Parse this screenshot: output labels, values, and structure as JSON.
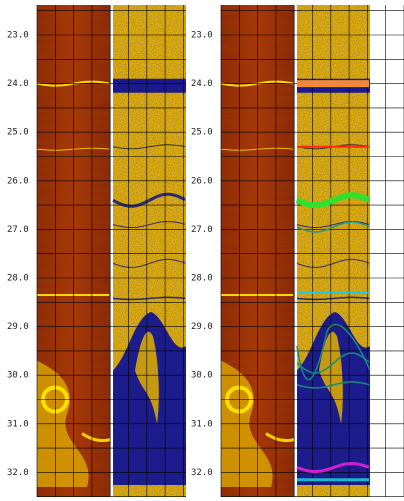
{
  "panels": [
    {
      "depth_labels": [
        "23.0",
        "24.0",
        "25.0",
        "26.0",
        "27.0",
        "28.0",
        "29.0",
        "30.0",
        "31.0",
        "32.0"
      ]
    },
    {
      "depth_labels": [
        "23.0",
        "24.0",
        "25.0",
        "26.0",
        "27.0",
        "28.0",
        "29.0",
        "30.0",
        "31.0",
        "32.0"
      ]
    }
  ]
}
